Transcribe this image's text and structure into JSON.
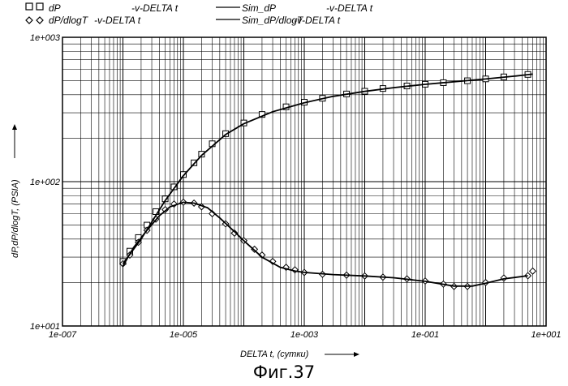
{
  "legend": {
    "entries": [
      {
        "marker": "square",
        "name": "dP",
        "suffix": "-v-DELTA t"
      },
      {
        "marker": "diamond",
        "name": "dP/dlogT",
        "suffix": "-v-DELTA t"
      },
      {
        "marker": "line",
        "name": "Sim_dP",
        "suffix": "-v-DELTA t"
      },
      {
        "marker": "line",
        "name": "Sim_dP/dlogT",
        "suffix": "-v-DELTA t"
      }
    ]
  },
  "caption": "Фиг.37",
  "chart_data": {
    "type": "scatter",
    "xscale": "log",
    "yscale": "log",
    "xlim": [
      1e-07,
      10
    ],
    "ylim": [
      10,
      1000
    ],
    "xlabel": "DELTA t, (сутки)",
    "ylabel": "dP,dP/dlogT, (PSIA)",
    "x_ticks": [
      "1e-007",
      "1e-005",
      "1e-003",
      "1e-001",
      "1e+001"
    ],
    "y_ticks": [
      "1e+001",
      "1e+002",
      "1e+003"
    ],
    "grid": true,
    "series": [
      {
        "name": "dP",
        "style": "marker",
        "marker": "square",
        "x": [
          1e-06,
          1.3e-06,
          1.8e-06,
          2.5e-06,
          3.5e-06,
          5e-06,
          7e-06,
          1e-05,
          1.5e-05,
          2e-05,
          3e-05,
          5e-05,
          0.0001,
          0.0002,
          0.0005,
          0.001,
          0.002,
          0.005,
          0.01,
          0.02,
          0.05,
          0.1,
          0.2,
          0.5,
          1,
          2,
          5
        ],
        "y": [
          28,
          33,
          41,
          50,
          62,
          76,
          92,
          112,
          135,
          155,
          183,
          215,
          255,
          292,
          330,
          355,
          378,
          405,
          423,
          442,
          460,
          473,
          485,
          500,
          515,
          532,
          553
        ]
      },
      {
        "name": "dP/dlogT",
        "style": "marker",
        "marker": "diamond",
        "x": [
          1e-06,
          1.3e-06,
          1.8e-06,
          2.5e-06,
          3.5e-06,
          5e-06,
          7e-06,
          1e-05,
          1.5e-05,
          2e-05,
          3e-05,
          5e-05,
          7e-05,
          0.0001,
          0.00015,
          0.0002,
          0.0003,
          0.0005,
          0.0007,
          0.001,
          0.002,
          0.005,
          0.01,
          0.02,
          0.05,
          0.1,
          0.2,
          0.3,
          0.5,
          1,
          2,
          5,
          6
        ],
        "y": [
          27,
          31,
          38,
          46,
          55,
          64,
          70,
          72,
          71,
          67,
          60,
          51,
          44,
          39,
          34,
          31,
          28,
          25.5,
          24.5,
          23.5,
          22.8,
          22.5,
          22.2,
          21.8,
          21.2,
          20.5,
          19.5,
          18.8,
          18.8,
          20,
          21.5,
          22.3,
          24
        ]
      },
      {
        "name": "Sim_dP",
        "style": "line",
        "x": [
          1e-06,
          2e-06,
          5e-06,
          1e-05,
          2e-05,
          5e-05,
          0.0001,
          0.0003,
          0.001,
          0.003,
          0.01,
          0.03,
          0.1,
          0.3,
          1,
          3,
          6
        ],
        "y": [
          27,
          40,
          74,
          110,
          152,
          212,
          252,
          305,
          352,
          390,
          422,
          448,
          472,
          492,
          514,
          538,
          556
        ]
      },
      {
        "name": "Sim_dP/dlogT",
        "style": "line",
        "x": [
          1e-06,
          1.5e-06,
          2.5e-06,
          4e-06,
          6e-06,
          1e-05,
          1.5e-05,
          2.5e-05,
          4e-05,
          7e-05,
          0.0001,
          0.0002,
          0.0004,
          0.0007,
          0.001,
          0.003,
          0.01,
          0.03,
          0.1,
          0.3,
          0.6,
          1,
          2,
          5
        ],
        "y": [
          26,
          35,
          46,
          58,
          67,
          72,
          71,
          66,
          56,
          45,
          39,
          30,
          25.5,
          24,
          23.5,
          22.7,
          22.2,
          21.6,
          20.4,
          18.9,
          18.9,
          19.8,
          21.2,
          22.3
        ]
      }
    ]
  }
}
